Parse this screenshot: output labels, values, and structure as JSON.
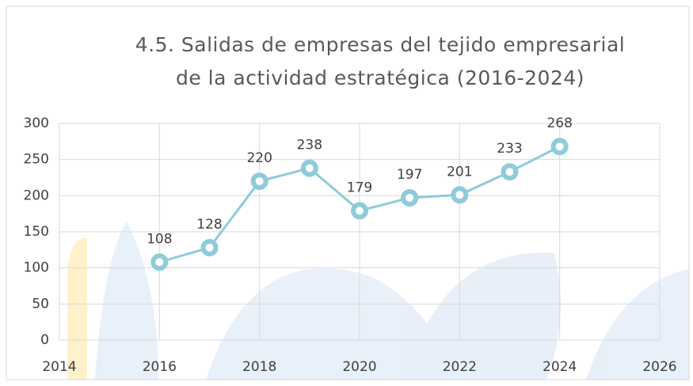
{
  "chart_data": {
    "type": "line",
    "title": [
      "4.5.  Salidas de empresas del tejido empresarial",
      "de la actividad estratégica (2016-2024)"
    ],
    "x": [
      2016,
      2017,
      2018,
      2019,
      2020,
      2021,
      2022,
      2023,
      2024
    ],
    "series": [
      {
        "name": "Salidas",
        "color": "#8fcbd9",
        "values": [
          108,
          128,
          220,
          238,
          179,
          197,
          201,
          233,
          268
        ]
      }
    ],
    "xlim": [
      2014,
      2026
    ],
    "xticks": [
      2014,
      2016,
      2018,
      2020,
      2022,
      2024,
      2026
    ],
    "ylim": [
      0,
      300
    ],
    "yticks": [
      0,
      50,
      100,
      150,
      200,
      250,
      300
    ],
    "grid": true
  }
}
